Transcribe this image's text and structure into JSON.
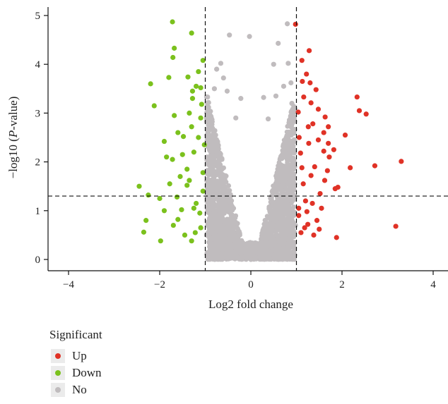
{
  "chart_data": {
    "type": "scatter",
    "title": "",
    "xlabel": "Log2 fold change",
    "ylabel_prefix": "−log10 (",
    "ylabel_italic": "P",
    "ylabel_suffix": "-value)",
    "xlim": [
      -4.4,
      4.3
    ],
    "ylim": [
      -0.05,
      5.2
    ],
    "x_ticks": [
      -4,
      -2,
      0,
      2,
      4
    ],
    "x_tick_labels": [
      "−4",
      "−2",
      "0",
      "2",
      "4"
    ],
    "y_ticks": [
      0,
      1,
      2,
      3,
      4,
      5
    ],
    "y_tick_labels": [
      "0",
      "1",
      "2",
      "3",
      "4",
      "5"
    ],
    "grid": false,
    "thresholds": {
      "log2fc": [
        -1,
        1
      ],
      "neg_log10_p": 1.3
    },
    "legend": {
      "title": "Significant",
      "placement": "bottom-left",
      "entries": [
        {
          "label": "Up",
          "color": "#e03226"
        },
        {
          "label": "Down",
          "color": "#7bc11d"
        },
        {
          "label": "No",
          "color": "#c0bcbe"
        }
      ]
    },
    "series": [
      {
        "name": "Up",
        "color": "#e03226",
        "points": [
          [
            0.98,
            4.82
          ],
          [
            1.28,
            4.28
          ],
          [
            1.12,
            4.08
          ],
          [
            1.22,
            3.8
          ],
          [
            1.13,
            3.65
          ],
          [
            1.3,
            3.62
          ],
          [
            1.43,
            3.48
          ],
          [
            1.16,
            3.33
          ],
          [
            1.32,
            3.21
          ],
          [
            1.48,
            3.08
          ],
          [
            1.63,
            2.92
          ],
          [
            1.36,
            2.78
          ],
          [
            1.7,
            2.72
          ],
          [
            2.07,
            2.55
          ],
          [
            1.48,
            2.45
          ],
          [
            1.7,
            2.38
          ],
          [
            1.6,
            2.22
          ],
          [
            1.72,
            2.1
          ],
          [
            1.82,
            2.25
          ],
          [
            2.33,
            3.33
          ],
          [
            2.38,
            3.05
          ],
          [
            2.53,
            2.98
          ],
          [
            3.3,
            2.01
          ],
          [
            2.72,
            1.92
          ],
          [
            2.18,
            1.88
          ],
          [
            1.91,
            1.48
          ],
          [
            1.85,
            1.45
          ],
          [
            3.18,
            0.68
          ],
          [
            1.88,
            0.45
          ],
          [
            1.38,
            0.5
          ],
          [
            1.1,
            0.55
          ],
          [
            1.18,
            0.65
          ],
          [
            1.25,
            0.72
          ],
          [
            1.45,
            0.8
          ],
          [
            1.05,
            1.05
          ],
          [
            1.2,
            1.2
          ],
          [
            1.35,
            1.15
          ],
          [
            1.55,
            1.05
          ],
          [
            1.62,
            1.62
          ],
          [
            1.4,
            1.9
          ],
          [
            1.06,
            2.5
          ],
          [
            1.26,
            2.72
          ],
          [
            1.04,
            3.02
          ],
          [
            1.09,
            2.18
          ],
          [
            1.52,
            1.35
          ],
          [
            1.15,
            1.55
          ],
          [
            1.32,
            1.72
          ],
          [
            1.68,
            1.82
          ],
          [
            1.05,
            0.9
          ],
          [
            1.23,
            0.98
          ],
          [
            1.5,
            0.62
          ],
          [
            1.12,
            1.88
          ],
          [
            1.27,
            2.38
          ],
          [
            1.6,
            2.6
          ]
        ]
      },
      {
        "name": "Down",
        "color": "#7bc11d",
        "points": [
          [
            -1.72,
            4.87
          ],
          [
            -1.3,
            4.64
          ],
          [
            -1.68,
            4.33
          ],
          [
            -1.71,
            4.14
          ],
          [
            -1.05,
            4.08
          ],
          [
            -1.8,
            3.73
          ],
          [
            -1.38,
            3.74
          ],
          [
            -2.2,
            3.6
          ],
          [
            -1.2,
            3.55
          ],
          [
            -1.1,
            3.52
          ],
          [
            -1.28,
            3.3
          ],
          [
            -2.12,
            3.15
          ],
          [
            -1.35,
            3.0
          ],
          [
            -1.68,
            2.95
          ],
          [
            -1.6,
            2.6
          ],
          [
            -1.9,
            2.42
          ],
          [
            -1.48,
            2.52
          ],
          [
            -1.85,
            2.1
          ],
          [
            -1.72,
            2.05
          ],
          [
            -1.4,
            1.85
          ],
          [
            -1.55,
            1.7
          ],
          [
            -1.25,
            2.2
          ],
          [
            -1.1,
            2.9
          ],
          [
            -2.45,
            1.5
          ],
          [
            -2.25,
            1.32
          ],
          [
            -2.0,
            1.25
          ],
          [
            -1.9,
            1.0
          ],
          [
            -2.3,
            0.8
          ],
          [
            -2.35,
            0.56
          ],
          [
            -1.98,
            0.38
          ],
          [
            -1.45,
            0.5
          ],
          [
            -1.3,
            0.38
          ],
          [
            -1.6,
            0.82
          ],
          [
            -1.1,
            0.65
          ],
          [
            -1.2,
            1.15
          ],
          [
            -1.05,
            1.4
          ],
          [
            -1.4,
            1.52
          ],
          [
            -1.15,
            2.5
          ],
          [
            -1.05,
            1.78
          ],
          [
            -1.62,
            1.28
          ],
          [
            -1.78,
            1.55
          ],
          [
            -1.3,
            2.72
          ],
          [
            -1.5,
            2.15
          ],
          [
            -1.08,
            3.18
          ],
          [
            -1.25,
            1.05
          ],
          [
            -1.35,
            1.62
          ],
          [
            -1.12,
            0.95
          ],
          [
            -1.52,
            1.02
          ],
          [
            -1.22,
            0.55
          ],
          [
            -1.7,
            0.7
          ],
          [
            -1.15,
            3.85
          ],
          [
            -1.28,
            3.45
          ],
          [
            -1.02,
            2.35
          ]
        ]
      },
      {
        "name": "No",
        "color": "#c0bcbe",
        "points": [
          [
            -0.47,
            4.6
          ],
          [
            0.8,
            4.83
          ],
          [
            0.6,
            4.43
          ],
          [
            -0.03,
            4.57
          ],
          [
            0.5,
            4.0
          ],
          [
            0.82,
            4.02
          ],
          [
            -0.66,
            4.02
          ],
          [
            -0.75,
            3.9
          ],
          [
            -0.6,
            3.72
          ],
          [
            -0.8,
            3.5
          ],
          [
            -0.52,
            3.45
          ],
          [
            0.72,
            3.55
          ],
          [
            0.88,
            3.62
          ],
          [
            0.55,
            3.35
          ],
          [
            0.28,
            3.32
          ],
          [
            -0.22,
            3.3
          ],
          [
            -0.95,
            3.33
          ],
          [
            0.9,
            3.2
          ],
          [
            -0.33,
            2.9
          ],
          [
            0.38,
            2.88
          ],
          [
            -0.88,
            2.7
          ],
          [
            0.93,
            2.62
          ],
          [
            0.1,
            0.05
          ],
          [
            0.0,
            0.0
          ],
          [
            -0.1,
            0.1
          ],
          [
            0.2,
            0.2
          ],
          [
            -0.2,
            0.15
          ],
          [
            0.55,
            0.2
          ],
          [
            0.95,
            0.35
          ],
          [
            0.82,
            0.15
          ],
          [
            -0.8,
            0.2
          ],
          [
            0.6,
            0.05
          ],
          [
            -0.6,
            0.3
          ],
          [
            0.95,
            1.3
          ],
          [
            -0.95,
            1.2
          ],
          [
            -0.97,
            0.5
          ],
          [
            0.98,
            0.7
          ]
        ]
      }
    ]
  }
}
